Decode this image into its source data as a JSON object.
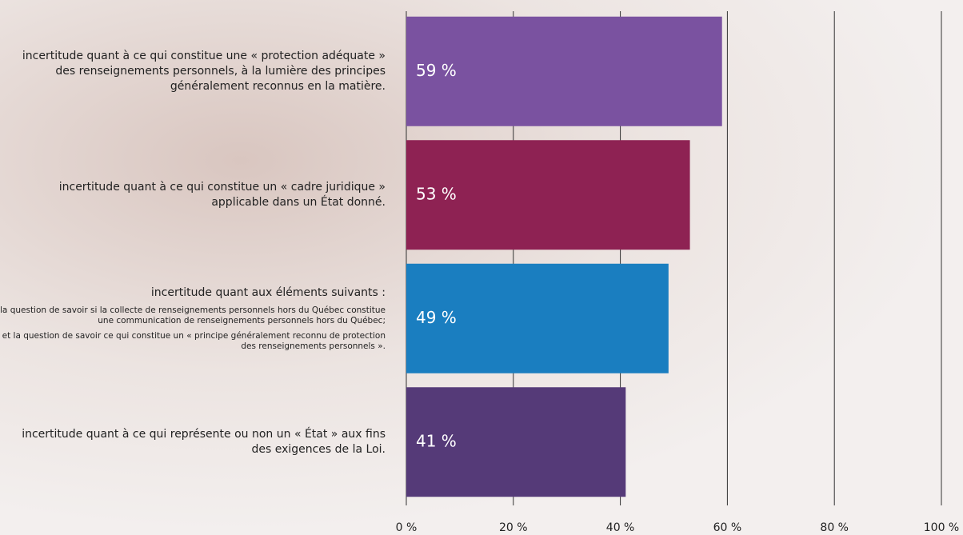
{
  "chart_data": {
    "type": "bar",
    "orientation": "horizontal",
    "categories": [
      "incertitude quant à ce qui constitue une « protection adéquate » des renseignements personnels, à la lumière des principes généralement reconnus en la matière.",
      "incertitude quant à ce qui constitue un « cadre juridique » applicable dans un État donné.",
      "incertitude quant aux éléments suivants :",
      "incertitude quant à ce qui représente ou non un « État » aux fins des exigences de la Loi."
    ],
    "annotations": [
      "la question de savoir si la collecte de renseignements personnels hors du Québec constitue une communication de renseignements personnels hors du Québec;",
      "et la question de savoir ce qui constitue un « principe généralement reconnu de protection des renseignements personnels »."
    ],
    "values": [
      59,
      53,
      49,
      41
    ],
    "value_labels": [
      "59 %",
      "53 %",
      "49 %",
      "41 %"
    ],
    "colors": [
      "#7a52a0",
      "#8e2253",
      "#1a7ec0",
      "#553a78"
    ],
    "xlim": [
      0,
      100
    ],
    "xticks": [
      {
        "value": 0,
        "label": "0 %"
      },
      {
        "value": 20,
        "label": "20 %"
      },
      {
        "value": 40,
        "label": "40 %"
      },
      {
        "value": 60,
        "label": "60 %"
      },
      {
        "value": 80,
        "label": "80 %"
      },
      {
        "value": 100,
        "label": "100 %"
      }
    ],
    "grid": true
  }
}
